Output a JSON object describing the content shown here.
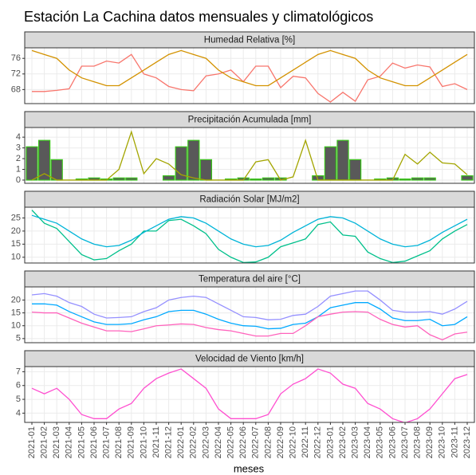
{
  "title": "Estación La Cachina datos mensuales y climatológicos",
  "xlabel": "meses",
  "categories": [
    "2021-01",
    "2021-02",
    "2021-03",
    "2021-04",
    "2021-05",
    "2021-06",
    "2021-07",
    "2021-08",
    "2021-09",
    "2021-10",
    "2021-11",
    "2021-12",
    "2022-01",
    "2022-02",
    "2022-03",
    "2022-04",
    "2022-05",
    "2022-06",
    "2022-07",
    "2022-08",
    "2022-09",
    "2022-10",
    "2022-11",
    "2022-12",
    "2023-01",
    "2023-02",
    "2023-03",
    "2023-04",
    "2023-05",
    "2023-06",
    "2023-07",
    "2023-08",
    "2023-09",
    "2023-10",
    "2023-11",
    "2023-12"
  ],
  "chart_data": [
    {
      "type": "line",
      "title": "Humedad Relativa [%]",
      "ylim": [
        64.4,
        78.7
      ],
      "yticks": [
        68,
        72,
        76
      ],
      "grid": true,
      "series": [
        {
          "type": "line",
          "color": "#f8766d",
          "values": [
            67.5,
            67.5,
            67.8,
            68.2,
            74,
            74,
            75.3,
            74.8,
            77,
            72,
            71,
            68.8,
            68,
            67.7,
            71.5,
            72,
            73,
            70,
            74,
            74,
            68.5,
            71.4,
            71,
            67,
            64.8,
            67.3,
            65,
            70.5,
            71.4,
            74.8,
            73.5,
            74.3,
            73.8,
            68.8,
            69.5,
            68
          ]
        },
        {
          "type": "line",
          "color": "#d39200",
          "values": [
            78,
            77,
            76,
            73,
            71,
            70,
            69,
            69,
            71,
            73,
            75,
            77,
            78,
            77,
            76,
            73,
            71,
            70,
            69,
            69,
            71,
            73,
            75,
            77,
            78,
            77,
            76,
            73,
            71,
            70,
            69,
            69,
            71,
            73,
            75,
            77
          ]
        }
      ]
    },
    {
      "type": "bar-line",
      "title": "Precipitación Acumulada [mm]",
      "ylim": [
        -0.3,
        4.9
      ],
      "yticks": [
        0,
        1,
        2,
        3,
        4
      ],
      "grid": true,
      "series": [
        {
          "type": "bar",
          "color": "#595959",
          "edgecolor": "#39c21a",
          "values": [
            3.1,
            3.7,
            1.9,
            0,
            0.1,
            0.2,
            0.1,
            0.2,
            0.2,
            0,
            0,
            0.4,
            3.1,
            3.7,
            1.9,
            0,
            0.1,
            0.2,
            0.1,
            0.2,
            0.2,
            0,
            0,
            0.4,
            3.1,
            3.7,
            1.9,
            0,
            0.1,
            0.2,
            0.1,
            0.2,
            0.2,
            0,
            0,
            0.4
          ]
        },
        {
          "type": "line",
          "color": "#a3a500",
          "values": [
            0,
            0.6,
            0,
            0,
            0,
            0,
            0,
            1.0,
            4.5,
            0.6,
            2.0,
            1.5,
            0.5,
            0.2,
            0,
            0,
            0,
            0,
            1.7,
            1.9,
            0,
            0.3,
            3.7,
            0,
            0,
            0,
            0,
            0,
            0,
            0,
            2.4,
            1.5,
            2.6,
            1.6,
            1.5,
            0.5
          ]
        }
      ]
    },
    {
      "type": "line",
      "title": "Radiación Solar [MJ/m2]",
      "ylim": [
        7.8,
        29.1
      ],
      "yticks": [
        10,
        15,
        20,
        25
      ],
      "grid": true,
      "series": [
        {
          "type": "line",
          "color": "#00c08b",
          "values": [
            28,
            23,
            21,
            16,
            11,
            9,
            9.5,
            12.5,
            15,
            20,
            20,
            24,
            24.5,
            22,
            19,
            13,
            10,
            8,
            8.2,
            10,
            14,
            15.5,
            17,
            22.5,
            23.5,
            18.5,
            18,
            12,
            9.5,
            8,
            8.5,
            10.5,
            12.5,
            17,
            20,
            22.5
          ]
        },
        {
          "type": "line",
          "color": "#00b4d8",
          "values": [
            26,
            24.5,
            23,
            20,
            17,
            15,
            14,
            14.5,
            16.5,
            19.5,
            22,
            24.5,
            25.5,
            25,
            23,
            20,
            17,
            15,
            14,
            14.5,
            16.5,
            19.5,
            22,
            24.5,
            25.5,
            25,
            23,
            20,
            17,
            15,
            14,
            14.5,
            16.5,
            19.5,
            22,
            24.5
          ]
        }
      ]
    },
    {
      "type": "line",
      "title": "Temperatura del aire [°C]",
      "ylim": [
        3.4,
        25.1
      ],
      "yticks": [
        5,
        10,
        15,
        20
      ],
      "grid": true,
      "series": [
        {
          "type": "line",
          "color": "#9590ff",
          "values": [
            22,
            22.5,
            21.5,
            19,
            17.5,
            14.5,
            13,
            13.2,
            13.5,
            15.5,
            17,
            20,
            21,
            21.5,
            21,
            18.5,
            16,
            13.5,
            13.2,
            12.3,
            12.5,
            14,
            14.5,
            17.5,
            21.5,
            22.5,
            23.5,
            23.5,
            20,
            16,
            15.3,
            15.3,
            15.5,
            14.5,
            16.5,
            19.5
          ]
        },
        {
          "type": "line",
          "color": "#00a9ff",
          "values": [
            18.5,
            18.5,
            18,
            15.5,
            13.5,
            11.5,
            10.5,
            10.5,
            10.8,
            12.3,
            13.5,
            15.5,
            16,
            16,
            14.5,
            12.5,
            11,
            10,
            9.8,
            8.8,
            9,
            10.5,
            11,
            13.5,
            17,
            18,
            19,
            19,
            16.5,
            13,
            12,
            12,
            12.5,
            10,
            10.5,
            13.5
          ]
        },
        {
          "type": "line",
          "color": "#ff62bc",
          "values": [
            15.3,
            15,
            15,
            13,
            11,
            9.5,
            8,
            8,
            7.7,
            8.8,
            10,
            10.3,
            10.7,
            10.5,
            9.3,
            8.5,
            8,
            7,
            6,
            6,
            7,
            7,
            10,
            13.5,
            14.5,
            15.3,
            15.5,
            15.3,
            12.5,
            10.5,
            9.5,
            10,
            6.5,
            4.5,
            6.8,
            7.5
          ]
        }
      ]
    },
    {
      "type": "line",
      "title": "Velocidad de Viento [km/h]",
      "ylim": [
        3.33,
        7.37
      ],
      "yticks": [
        4,
        5,
        6,
        7
      ],
      "grid": true,
      "series": [
        {
          "type": "line",
          "color": "#ff4fd0",
          "values": [
            5.8,
            5.4,
            5.8,
            5,
            3.9,
            3.6,
            3.6,
            4.3,
            4.7,
            5.8,
            6.5,
            6.9,
            7.2,
            6.5,
            5.8,
            4.3,
            3.6,
            3.6,
            3.6,
            3.9,
            5.4,
            6.1,
            6.5,
            7.2,
            6.9,
            6.1,
            5.8,
            4.7,
            4.3,
            3.6,
            3.3,
            3.6,
            4.3,
            5.4,
            6.5,
            6.8
          ]
        }
      ]
    }
  ]
}
